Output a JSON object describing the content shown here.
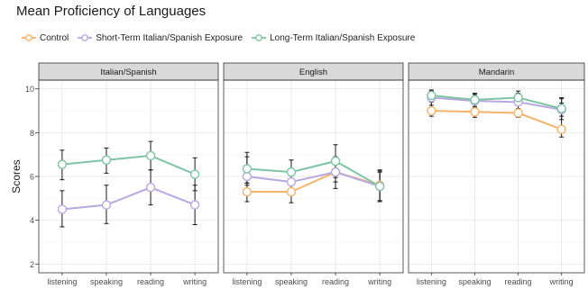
{
  "chart_data": {
    "type": "line",
    "title": "Mean Proficiency of Languages",
    "xlabel": "",
    "ylabel": "Scores",
    "ylim": [
      1.6,
      10.4
    ],
    "yticks": [
      2,
      4,
      6,
      8,
      10
    ],
    "categories": [
      "listening",
      "speaking",
      "reading",
      "writing"
    ],
    "legend_position": "top-left",
    "grid": true,
    "series_colors": {
      "Control": "#f5b36b",
      "Short-Term Italian/Spanish Exposure": "#b7a9e0",
      "Long-Term Italian/Spanish Exposure": "#7fc4a4"
    },
    "series": [
      {
        "name": "Control"
      },
      {
        "name": "Short-Term Italian/Spanish Exposure"
      },
      {
        "name": "Long-Term Italian/Spanish Exposure"
      }
    ],
    "panels": [
      {
        "title": "Italian/Spanish",
        "series": [
          {
            "name": "Short-Term Italian/Spanish Exposure",
            "values": [
              4.5,
              4.7,
              5.5,
              4.7
            ],
            "err_low": [
              3.7,
              3.85,
              4.7,
              3.8
            ],
            "err_high": [
              5.35,
              5.6,
              6.3,
              5.6
            ]
          },
          {
            "name": "Long-Term Italian/Spanish Exposure",
            "values": [
              6.55,
              6.75,
              6.95,
              6.1
            ],
            "err_low": [
              5.85,
              6.15,
              6.3,
              5.35
            ],
            "err_high": [
              7.2,
              7.3,
              7.6,
              6.85
            ]
          }
        ]
      },
      {
        "title": "English",
        "series": [
          {
            "name": "Control",
            "values": [
              5.3,
              5.3,
              6.2,
              5.6
            ],
            "err_low": [
              4.85,
              4.8,
              5.45,
              4.85
            ],
            "err_high": [
              5.7,
              5.75,
              6.9,
              6.3
            ]
          },
          {
            "name": "Short-Term Italian/Spanish Exposure",
            "values": [
              6.0,
              5.75,
              6.2,
              5.55
            ],
            "err_low": [
              5.6,
              5.25,
              5.75,
              4.9
            ],
            "err_high": [
              6.9,
              6.3,
              6.7,
              6.2
            ]
          },
          {
            "name": "Long-Term Italian/Spanish Exposure",
            "values": [
              6.35,
              6.2,
              6.7,
              5.55
            ],
            "err_low": [
              5.7,
              5.6,
              5.95,
              4.85
            ],
            "err_high": [
              7.1,
              6.75,
              7.45,
              6.25
            ]
          }
        ]
      },
      {
        "title": "Mandarin",
        "series": [
          {
            "name": "Control",
            "values": [
              9.0,
              8.95,
              8.9,
              8.15
            ],
            "err_low": [
              8.75,
              8.7,
              8.7,
              7.8
            ],
            "err_high": [
              9.8,
              9.75,
              9.75,
              9.35
            ]
          },
          {
            "name": "Short-Term Italian/Spanish Exposure",
            "values": [
              9.6,
              9.45,
              9.4,
              9.05
            ],
            "err_low": [
              9.25,
              9.15,
              9.1,
              8.6
            ],
            "err_high": [
              9.9,
              9.75,
              9.8,
              9.6
            ]
          },
          {
            "name": "Long-Term Italian/Spanish Exposure",
            "values": [
              9.7,
              9.5,
              9.6,
              9.1
            ],
            "err_low": [
              9.4,
              9.2,
              9.3,
              8.75
            ],
            "err_high": [
              9.95,
              9.8,
              9.9,
              9.55
            ]
          }
        ]
      }
    ]
  }
}
